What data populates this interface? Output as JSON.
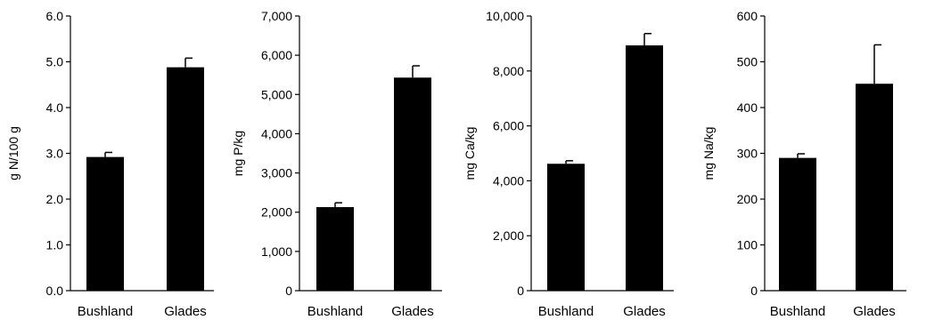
{
  "chart_data": [
    {
      "type": "bar",
      "categories": [
        "Bushland",
        "Glades"
      ],
      "values": [
        2.92,
        4.88
      ],
      "error": [
        0.1,
        0.2
      ],
      "ylabel": "g N/100 g",
      "ylim": [
        0,
        6
      ],
      "yticks": [
        0,
        1,
        2,
        3,
        4,
        5,
        6
      ],
      "ytick_labels": [
        "0.0",
        "1.0",
        "2.0",
        "3.0",
        "4.0",
        "5.0",
        "6.0"
      ],
      "grid": false,
      "bar_color": "#000000"
    },
    {
      "type": "bar",
      "categories": [
        "Bushland",
        "Glades"
      ],
      "values": [
        2130,
        5430
      ],
      "error": [
        110,
        300
      ],
      "ylabel": "mg P/kg",
      "ylim": [
        0,
        7000
      ],
      "yticks": [
        0,
        1000,
        2000,
        3000,
        4000,
        5000,
        6000,
        7000
      ],
      "ytick_labels": [
        "0",
        "1,000",
        "2,000",
        "3,000",
        "4,000",
        "5,000",
        "6,000",
        "7,000"
      ],
      "grid": false,
      "bar_color": "#000000"
    },
    {
      "type": "bar",
      "categories": [
        "Bushland",
        "Glades"
      ],
      "values": [
        4620,
        8930
      ],
      "error": [
        110,
        430
      ],
      "ylabel": "mg Ca/kg",
      "ylim": [
        0,
        10000
      ],
      "yticks": [
        0,
        2000,
        4000,
        6000,
        8000,
        10000
      ],
      "ytick_labels": [
        "0",
        "2,000",
        "4,000",
        "6,000",
        "8,000",
        "10,000"
      ],
      "grid": false,
      "bar_color": "#000000"
    },
    {
      "type": "bar",
      "categories": [
        "Bushland",
        "Glades"
      ],
      "values": [
        290,
        452
      ],
      "error": [
        9,
        85
      ],
      "ylabel": "mg Na/kg",
      "ylim": [
        0,
        600
      ],
      "yticks": [
        0,
        100,
        200,
        300,
        400,
        500,
        600
      ],
      "ytick_labels": [
        "0",
        "100",
        "200",
        "300",
        "400",
        "500",
        "600"
      ],
      "grid": false,
      "bar_color": "#000000"
    }
  ]
}
